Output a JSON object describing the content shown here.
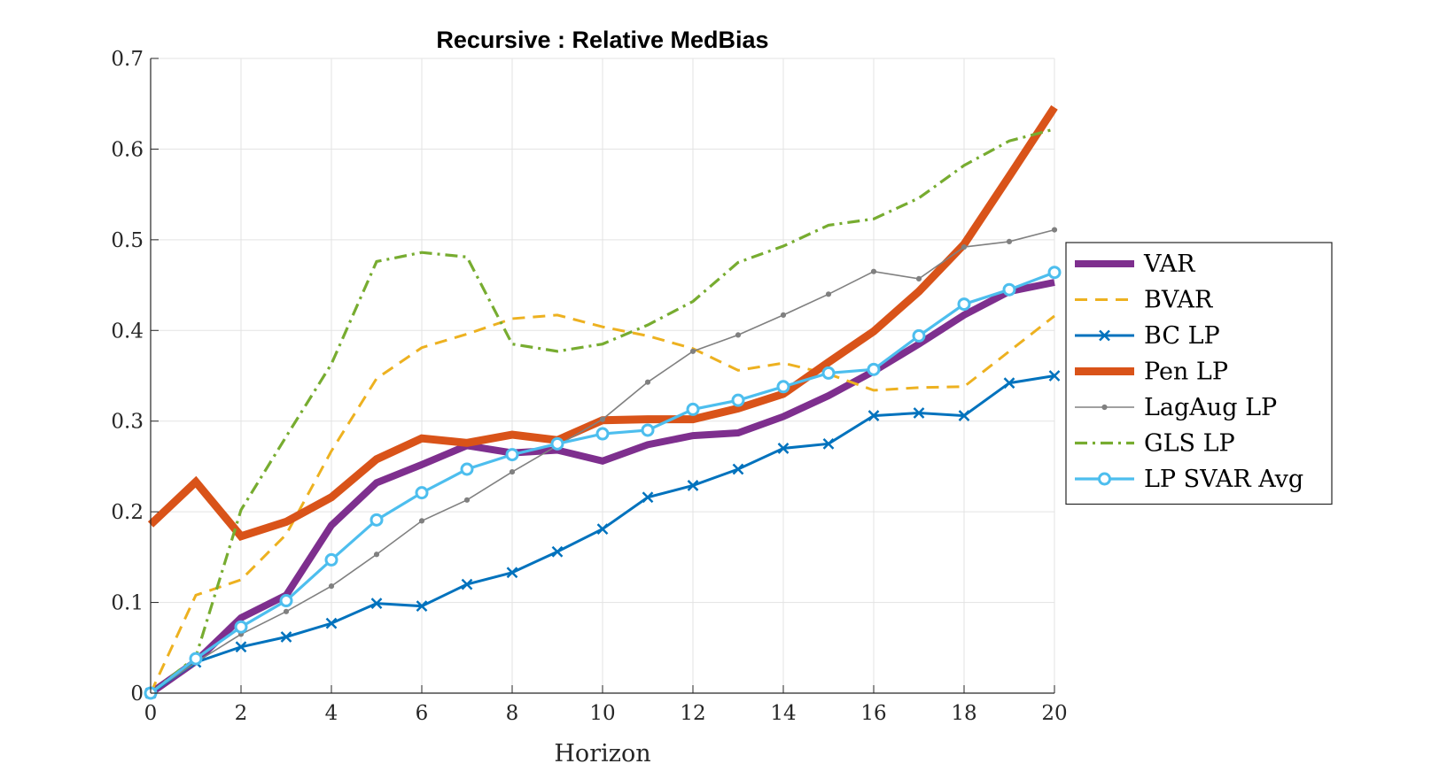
{
  "chart_data": {
    "type": "line",
    "title": "Recursive : Relative MedBias",
    "xlabel": "Horizon",
    "ylabel": "",
    "xlim": [
      0,
      20
    ],
    "ylim": [
      0,
      0.7
    ],
    "xticks": [
      0,
      2,
      4,
      6,
      8,
      10,
      12,
      14,
      16,
      18,
      20
    ],
    "yticks": [
      0,
      0.1,
      0.2,
      0.3,
      0.4,
      0.5,
      0.6,
      0.7
    ],
    "xtick_labels": [
      "0",
      "2",
      "4",
      "6",
      "8",
      "10",
      "12",
      "14",
      "16",
      "18",
      "20"
    ],
    "ytick_labels": [
      "0",
      "0.1",
      "0.2",
      "0.3",
      "0.4",
      "0.5",
      "0.6",
      "0.7"
    ],
    "grid": true,
    "legend_position": "outside-right",
    "x": [
      0,
      1,
      2,
      3,
      4,
      5,
      6,
      7,
      8,
      9,
      10,
      11,
      12,
      13,
      14,
      15,
      16,
      17,
      18,
      19,
      20
    ],
    "series": [
      {
        "name": "VAR",
        "color": "#7E2F8E",
        "style": "solid",
        "marker": "none",
        "values": [
          0.0,
          0.035,
          0.083,
          0.108,
          0.185,
          0.232,
          0.252,
          0.273,
          0.265,
          0.268,
          0.256,
          0.274,
          0.284,
          0.287,
          0.305,
          0.328,
          0.355,
          0.385,
          0.417,
          0.443,
          0.453
        ]
      },
      {
        "name": "BVAR",
        "color": "#EDB120",
        "style": "dashed",
        "marker": "none",
        "values": [
          0.0,
          0.108,
          0.125,
          0.175,
          0.267,
          0.347,
          0.381,
          0.396,
          0.413,
          0.417,
          0.404,
          0.394,
          0.38,
          0.356,
          0.364,
          0.352,
          0.334,
          0.337,
          0.338,
          0.377,
          0.416
        ]
      },
      {
        "name": "BC LP",
        "color": "#0072BD",
        "style": "solid",
        "marker": "x",
        "values": [
          0.0,
          0.034,
          0.051,
          0.062,
          0.077,
          0.099,
          0.096,
          0.12,
          0.133,
          0.156,
          0.181,
          0.216,
          0.229,
          0.247,
          0.27,
          0.275,
          0.306,
          0.309,
          0.306,
          0.342,
          0.35
        ]
      },
      {
        "name": "Pen LP",
        "color": "#D95319",
        "style": "solid",
        "marker": "none",
        "values": [
          0.186,
          0.233,
          0.173,
          0.189,
          0.216,
          0.258,
          0.281,
          0.276,
          0.285,
          0.279,
          0.301,
          0.302,
          0.302,
          0.314,
          0.33,
          0.365,
          0.399,
          0.443,
          0.495,
          0.57,
          0.646
        ]
      },
      {
        "name": "LagAug LP",
        "color": "#808080",
        "style": "solid",
        "marker": "dot",
        "values": [
          0.0,
          0.034,
          0.065,
          0.09,
          0.118,
          0.153,
          0.19,
          0.213,
          0.244,
          0.273,
          0.302,
          0.343,
          0.377,
          0.395,
          0.417,
          0.44,
          0.465,
          0.457,
          0.492,
          0.498,
          0.511
        ]
      },
      {
        "name": "GLS LP",
        "color": "#77AC30",
        "style": "dashdot",
        "marker": "none",
        "values": [
          0.0,
          0.04,
          0.202,
          0.283,
          0.363,
          0.476,
          0.486,
          0.481,
          0.385,
          0.377,
          0.385,
          0.406,
          0.432,
          0.475,
          0.493,
          0.516,
          0.523,
          0.546,
          0.582,
          0.609,
          0.622
        ]
      },
      {
        "name": "LP SVAR Avg",
        "color": "#4DBEEE",
        "style": "solid",
        "marker": "circle",
        "values": [
          0.0,
          0.038,
          0.073,
          0.102,
          0.147,
          0.191,
          0.221,
          0.247,
          0.263,
          0.275,
          0.286,
          0.29,
          0.313,
          0.323,
          0.338,
          0.353,
          0.357,
          0.394,
          0.429,
          0.445,
          0.464
        ]
      }
    ]
  }
}
